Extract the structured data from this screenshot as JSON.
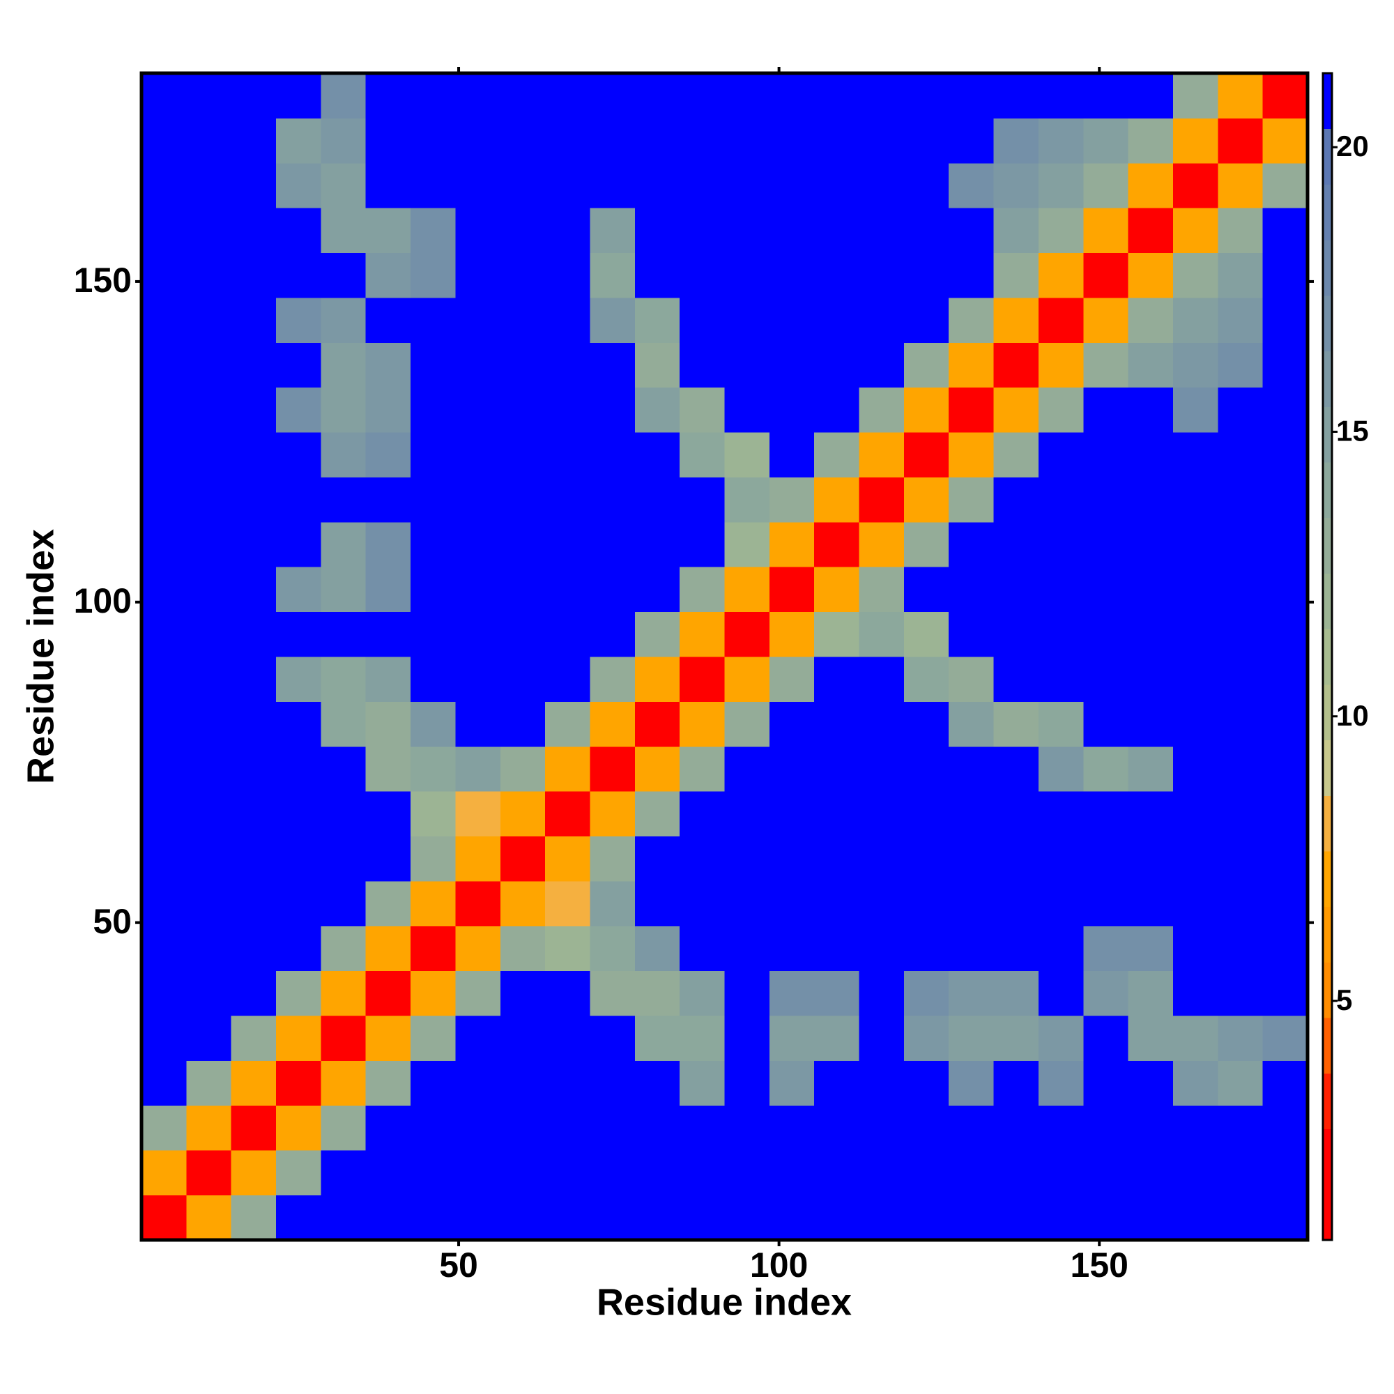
{
  "chart_data": {
    "type": "heatmap",
    "xlabel": "Residue index",
    "ylabel": "Residue index",
    "x": [
      4,
      11,
      18,
      25,
      32,
      39,
      46,
      53,
      60,
      67,
      74,
      81,
      88,
      95,
      102,
      109,
      116,
      123,
      130,
      137,
      144,
      151,
      158,
      165,
      172,
      179
    ],
    "y": [
      4,
      11,
      18,
      25,
      32,
      39,
      46,
      53,
      60,
      67,
      74,
      81,
      88,
      95,
      102,
      109,
      116,
      123,
      130,
      137,
      144,
      151,
      158,
      165,
      172,
      179
    ],
    "values": [
      [
        2,
        7,
        13,
        21,
        21,
        21,
        21,
        21,
        21,
        21,
        21,
        21,
        21,
        21,
        21,
        21,
        21,
        21,
        21,
        21,
        21,
        21,
        21,
        21,
        21,
        21
      ],
      [
        7,
        2,
        7,
        13,
        21,
        21,
        21,
        21,
        21,
        21,
        21,
        21,
        21,
        21,
        21,
        21,
        21,
        21,
        21,
        21,
        21,
        21,
        21,
        21,
        21,
        21
      ],
      [
        13,
        7,
        2,
        7,
        13,
        21,
        21,
        21,
        21,
        21,
        21,
        21,
        21,
        21,
        21,
        21,
        21,
        21,
        21,
        21,
        21,
        21,
        21,
        21,
        21,
        21
      ],
      [
        21,
        13,
        7,
        2,
        7,
        13,
        21,
        21,
        21,
        21,
        21,
        21,
        15,
        21,
        16,
        21,
        21,
        21,
        17,
        21,
        17,
        21,
        21,
        16,
        15,
        21
      ],
      [
        21,
        21,
        13,
        7,
        2,
        7,
        13,
        21,
        21,
        21,
        21,
        14,
        14,
        21,
        15,
        15,
        21,
        16,
        15,
        15,
        16,
        21,
        15,
        15,
        16,
        17
      ],
      [
        21,
        21,
        21,
        13,
        7,
        2,
        7,
        13,
        21,
        21,
        13,
        13,
        15,
        21,
        17,
        17,
        21,
        17,
        16,
        16,
        21,
        16,
        15,
        21,
        21,
        21
      ],
      [
        21,
        21,
        21,
        21,
        13,
        7,
        2,
        7,
        13,
        12,
        14,
        16,
        21,
        21,
        21,
        21,
        21,
        21,
        21,
        21,
        21,
        17,
        17,
        21,
        21,
        21
      ],
      [
        21,
        21,
        21,
        21,
        21,
        13,
        7,
        2,
        7,
        8,
        15,
        21,
        21,
        21,
        21,
        21,
        21,
        21,
        21,
        21,
        21,
        21,
        21,
        21,
        21,
        21
      ],
      [
        21,
        21,
        21,
        21,
        21,
        21,
        13,
        7,
        2,
        7,
        13,
        21,
        21,
        21,
        21,
        21,
        21,
        21,
        21,
        21,
        21,
        21,
        21,
        21,
        21,
        21
      ],
      [
        21,
        21,
        21,
        21,
        21,
        21,
        12,
        8,
        7,
        2,
        7,
        13,
        21,
        21,
        21,
        21,
        21,
        21,
        21,
        21,
        21,
        21,
        21,
        21,
        21,
        21
      ],
      [
        21,
        21,
        21,
        21,
        21,
        13,
        14,
        15,
        13,
        7,
        2,
        7,
        13,
        21,
        21,
        21,
        21,
        21,
        21,
        21,
        16,
        14,
        15,
        21,
        21,
        21
      ],
      [
        21,
        21,
        21,
        21,
        14,
        13,
        16,
        21,
        21,
        13,
        7,
        2,
        7,
        13,
        21,
        21,
        21,
        21,
        15,
        13,
        14,
        21,
        21,
        21,
        21,
        21
      ],
      [
        21,
        21,
        21,
        15,
        14,
        15,
        21,
        21,
        21,
        21,
        13,
        7,
        2,
        7,
        13,
        21,
        21,
        14,
        13,
        21,
        21,
        21,
        21,
        21,
        21,
        21
      ],
      [
        21,
        21,
        21,
        21,
        21,
        21,
        21,
        21,
        21,
        21,
        21,
        13,
        7,
        2,
        7,
        12,
        14,
        12,
        21,
        21,
        21,
        21,
        21,
        21,
        21,
        21
      ],
      [
        21,
        21,
        21,
        16,
        15,
        17,
        21,
        21,
        21,
        21,
        21,
        21,
        13,
        7,
        2,
        7,
        13,
        21,
        21,
        21,
        21,
        21,
        21,
        21,
        21,
        21
      ],
      [
        21,
        21,
        21,
        21,
        15,
        17,
        21,
        21,
        21,
        21,
        21,
        21,
        21,
        12,
        7,
        2,
        7,
        13,
        21,
        21,
        21,
        21,
        21,
        21,
        21,
        21
      ],
      [
        21,
        21,
        21,
        21,
        21,
        21,
        21,
        21,
        21,
        21,
        21,
        21,
        21,
        14,
        13,
        7,
        2,
        7,
        13,
        21,
        21,
        21,
        21,
        21,
        21,
        21
      ],
      [
        21,
        21,
        21,
        21,
        16,
        17,
        21,
        21,
        21,
        21,
        21,
        21,
        14,
        12,
        21,
        13,
        7,
        2,
        7,
        13,
        21,
        21,
        21,
        21,
        21,
        21
      ],
      [
        21,
        21,
        21,
        17,
        15,
        16,
        21,
        21,
        21,
        21,
        21,
        15,
        13,
        21,
        21,
        21,
        13,
        7,
        2,
        7,
        13,
        21,
        21,
        17,
        21,
        21
      ],
      [
        21,
        21,
        21,
        21,
        15,
        16,
        21,
        21,
        21,
        21,
        21,
        13,
        21,
        21,
        21,
        21,
        21,
        13,
        7,
        2,
        7,
        13,
        15,
        16,
        17,
        21
      ],
      [
        21,
        21,
        21,
        17,
        16,
        21,
        21,
        21,
        21,
        21,
        16,
        14,
        21,
        21,
        21,
        21,
        21,
        21,
        13,
        7,
        2,
        7,
        13,
        15,
        16,
        21
      ],
      [
        21,
        21,
        21,
        21,
        21,
        16,
        17,
        21,
        21,
        21,
        14,
        21,
        21,
        21,
        21,
        21,
        21,
        21,
        21,
        13,
        7,
        2,
        7,
        13,
        15,
        21
      ],
      [
        21,
        21,
        21,
        21,
        15,
        15,
        17,
        21,
        21,
        21,
        15,
        21,
        21,
        21,
        21,
        21,
        21,
        21,
        21,
        15,
        13,
        7,
        2,
        7,
        13,
        21
      ],
      [
        21,
        21,
        21,
        16,
        15,
        21,
        21,
        21,
        21,
        21,
        21,
        21,
        21,
        21,
        21,
        21,
        21,
        21,
        17,
        16,
        15,
        13,
        7,
        2,
        7,
        13
      ],
      [
        21,
        21,
        21,
        15,
        16,
        21,
        21,
        21,
        21,
        21,
        21,
        21,
        21,
        21,
        21,
        21,
        21,
        21,
        21,
        17,
        16,
        15,
        13,
        7,
        2,
        7
      ],
      [
        21,
        21,
        21,
        21,
        17,
        21,
        21,
        21,
        21,
        21,
        21,
        21,
        21,
        21,
        21,
        21,
        21,
        21,
        21,
        21,
        21,
        21,
        21,
        13,
        7,
        2
      ]
    ],
    "xlim": [
      0.5,
      182.5
    ],
    "ylim": [
      0.5,
      182.5
    ],
    "xticks": [
      50,
      100,
      150
    ],
    "yticks": [
      50,
      100,
      150
    ],
    "zlim": [
      0.8,
      21.3
    ],
    "colorbar_ticks": [
      5,
      10,
      15,
      20
    ],
    "colors": [
      "#ff0000",
      "#ff0000",
      "#ff2000",
      "#ff6000",
      "#ff8c00",
      "#ff9900",
      "#ffa500",
      "#f5b040",
      "#c8c88c",
      "#b4c08c",
      "#a8bc90",
      "#9cb494",
      "#94ac98",
      "#8ca89c",
      "#84a0a0",
      "#7c98a4",
      "#7490a8",
      "#6c88ac",
      "#6480b0",
      "#5c78b4",
      "#0000ff"
    ]
  }
}
